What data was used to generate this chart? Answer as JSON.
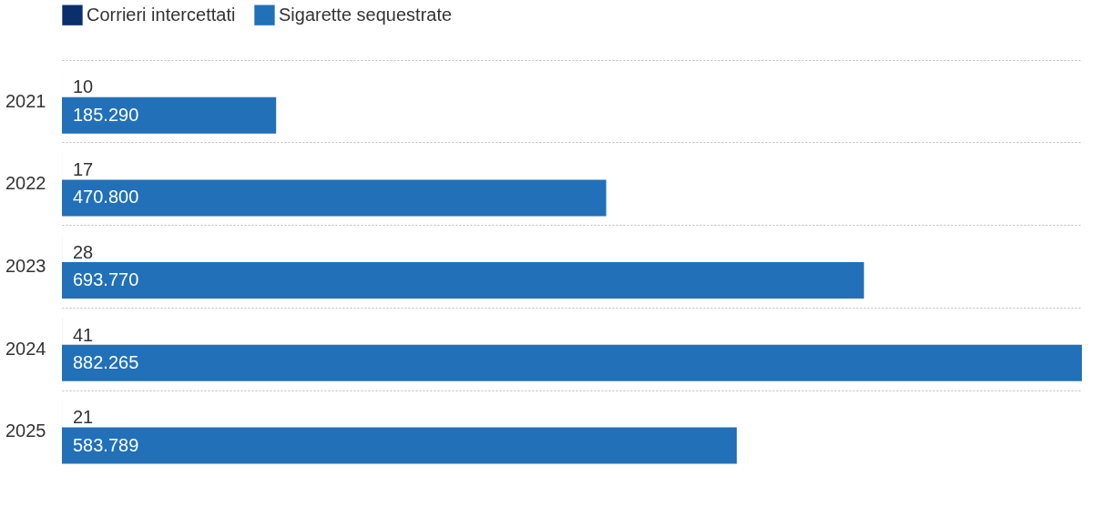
{
  "chart_data": {
    "type": "bar",
    "orientation": "horizontal",
    "categories": [
      "2021",
      "2022",
      "2023",
      "2024",
      "2025"
    ],
    "series": [
      {
        "name": "Corrieri intercettati",
        "color": "#0b2f6b",
        "values": [
          10,
          17,
          28,
          41,
          21
        ],
        "value_labels": [
          "10",
          "17",
          "28",
          "41",
          "21"
        ]
      },
      {
        "name": "Sigarette sequestrate",
        "color": "#2170b8",
        "values": [
          185290,
          470800,
          693770,
          882265,
          583789
        ],
        "value_labels": [
          "185.290",
          "470.800",
          "693.770",
          "882.265",
          "583.789"
        ]
      }
    ],
    "xlim": [
      0,
      882265
    ],
    "tick_labels": "y",
    "grid": "y",
    "legend": "top left"
  }
}
